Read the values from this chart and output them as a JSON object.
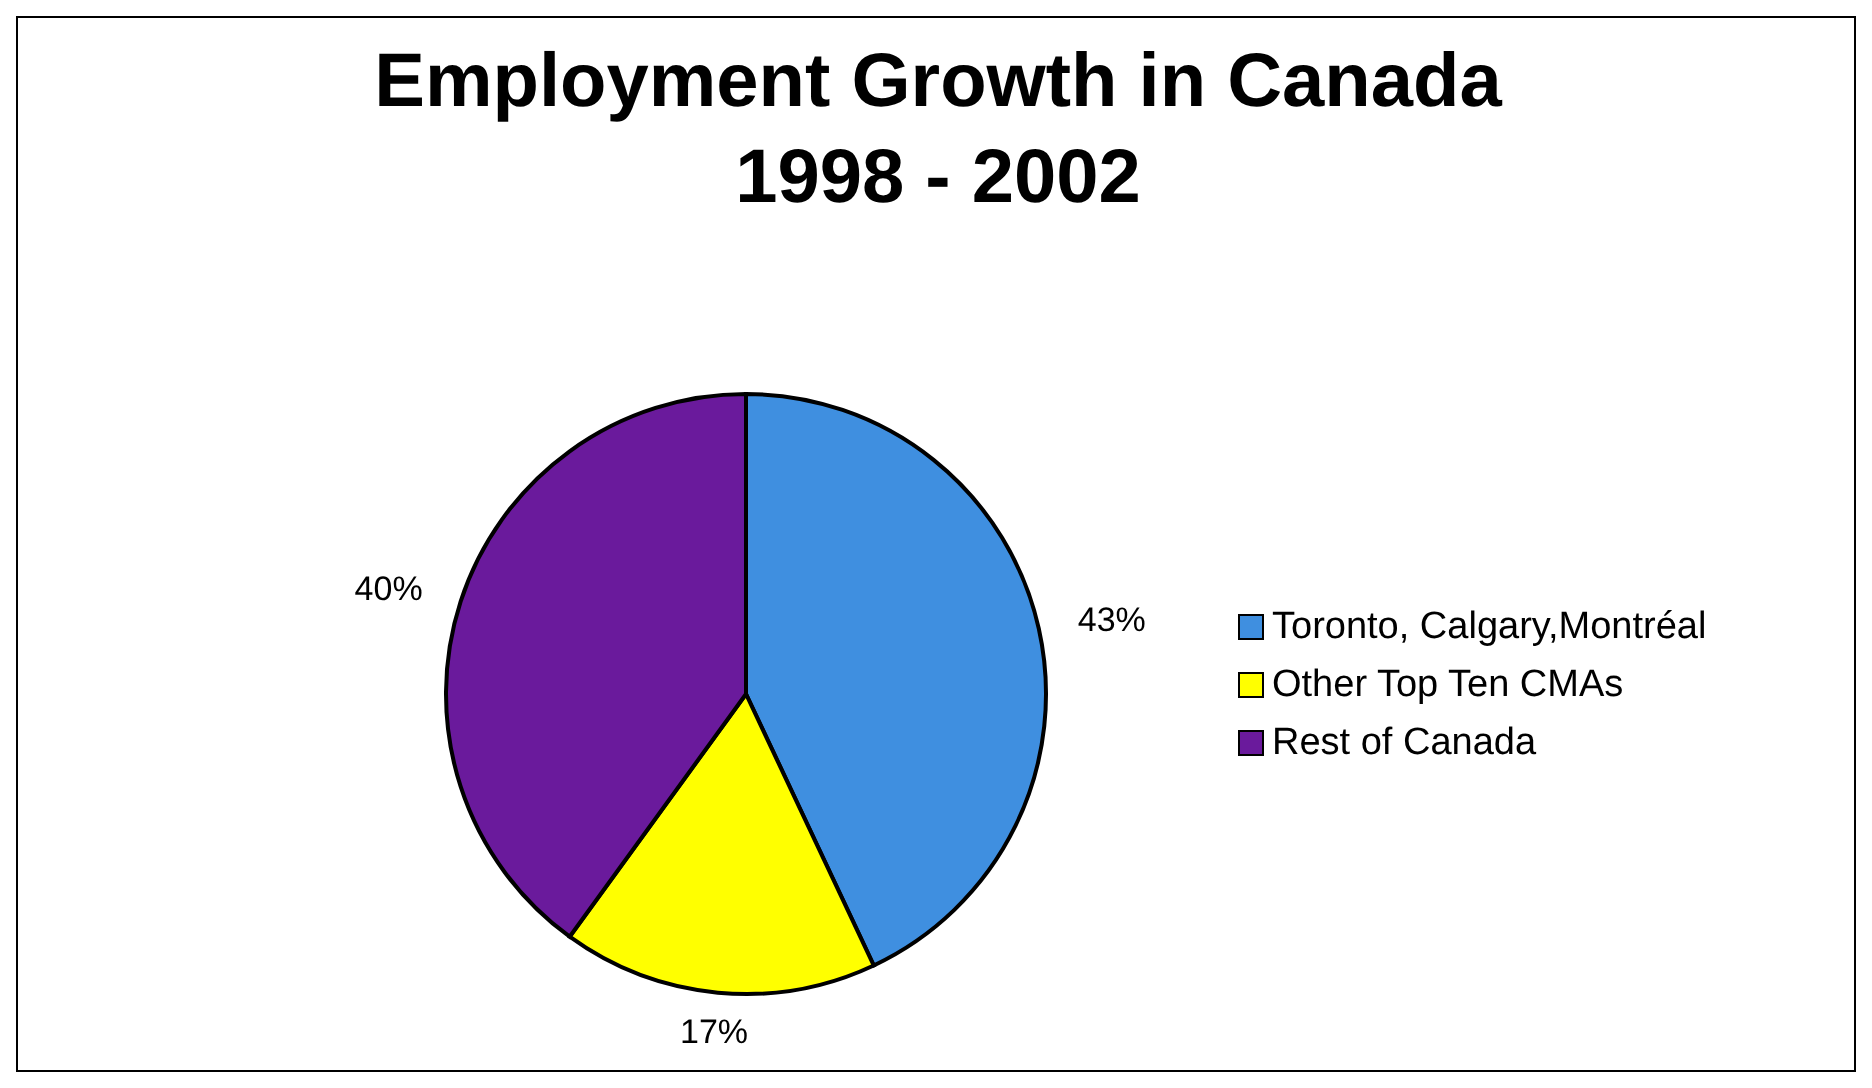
{
  "chart_data": {
    "type": "pie",
    "title": "Employment Growth in Canada\n1998 - 2002",
    "categories": [
      "Toronto, Calgary,Montréal",
      "Other Top Ten CMAs",
      "Rest of Canada"
    ],
    "values": [
      43,
      17,
      40
    ],
    "colors": [
      "#3f8fe0",
      "#ffff00",
      "#6a1a9c"
    ],
    "value_labels": [
      "43%",
      "17%",
      "40%"
    ],
    "legend": "right"
  }
}
